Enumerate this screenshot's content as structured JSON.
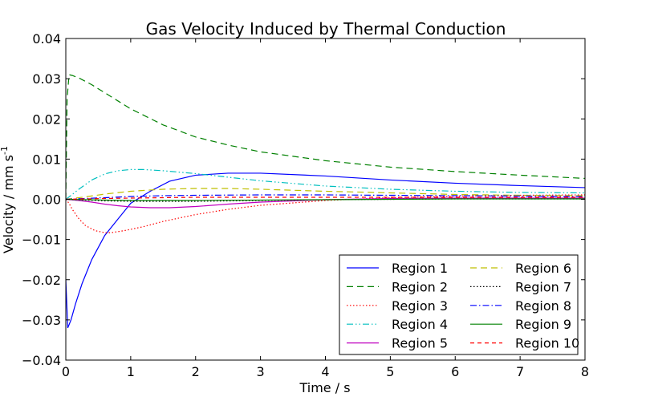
{
  "chart_data": {
    "type": "line",
    "title": "Gas Velocity Induced by Thermal Conduction",
    "xlabel": "Time / s",
    "ylabel_main": "Velocity / mm s",
    "ylabel_sup": "-1",
    "xlim": [
      0,
      8
    ],
    "ylim": [
      -0.04,
      0.04
    ],
    "xticks": [
      0,
      1,
      2,
      3,
      4,
      5,
      6,
      7,
      8
    ],
    "xtick_labels": [
      "0",
      "1",
      "2",
      "3",
      "4",
      "5",
      "6",
      "7",
      "8"
    ],
    "yticks": [
      -0.04,
      -0.03,
      -0.02,
      -0.01,
      0.0,
      0.01,
      0.02,
      0.03,
      0.04
    ],
    "ytick_labels": [
      "−0.04",
      "−0.03",
      "−0.02",
      "−0.01",
      "0.00",
      "0.01",
      "0.02",
      "0.03",
      "0.04"
    ],
    "grid": false,
    "legend_position": "lower-right",
    "legend_columns": 2,
    "series": [
      {
        "name": "Region 1",
        "color": "#0000ff",
        "dash": "solid",
        "x": [
          0,
          0.03,
          0.08,
          0.15,
          0.25,
          0.4,
          0.6,
          0.8,
          1.0,
          1.3,
          1.6,
          2.0,
          2.5,
          3.0,
          4.0,
          5.0,
          6.0,
          7.0,
          8.0
        ],
        "y": [
          -0.02,
          -0.032,
          -0.03,
          -0.026,
          -0.021,
          -0.015,
          -0.009,
          -0.005,
          -0.001,
          0.002,
          0.0045,
          0.006,
          0.0065,
          0.0065,
          0.0058,
          0.0048,
          0.004,
          0.0034,
          0.0029
        ]
      },
      {
        "name": "Region 2",
        "color": "#008000",
        "dash": "8,5",
        "x": [
          0,
          0.02,
          0.05,
          0.1,
          0.2,
          0.4,
          0.6,
          0.8,
          1.0,
          1.5,
          2.0,
          2.5,
          3.0,
          4.0,
          5.0,
          6.0,
          7.0,
          8.0
        ],
        "y": [
          0.0,
          0.025,
          0.031,
          0.0308,
          0.0302,
          0.0285,
          0.0265,
          0.0245,
          0.0225,
          0.0185,
          0.0155,
          0.0135,
          0.0118,
          0.0096,
          0.008,
          0.0069,
          0.006,
          0.0052
        ]
      },
      {
        "name": "Region 3",
        "color": "#ff0000",
        "dash": "1.5,2.5",
        "x": [
          0,
          0.05,
          0.1,
          0.2,
          0.3,
          0.45,
          0.6,
          0.7,
          0.9,
          1.2,
          1.5,
          2.0,
          2.5,
          3.0,
          4.0,
          5.0,
          6.0,
          7.0,
          8.0
        ],
        "y": [
          0.0,
          -0.001,
          -0.0025,
          -0.0048,
          -0.0065,
          -0.0078,
          -0.0083,
          -0.0083,
          -0.0078,
          -0.0068,
          -0.0055,
          -0.0038,
          -0.0025,
          -0.0015,
          -0.0003,
          0.0004,
          0.0008,
          0.001,
          0.0011
        ]
      },
      {
        "name": "Region 4",
        "color": "#00bfbf",
        "dash": "8,3,1.5,3,1.5,3",
        "x": [
          0,
          0.1,
          0.2,
          0.4,
          0.6,
          0.8,
          1.0,
          1.2,
          1.5,
          2.0,
          2.5,
          3.0,
          4.0,
          5.0,
          6.0,
          7.0,
          8.0
        ],
        "y": [
          0.0,
          0.0012,
          0.0025,
          0.0048,
          0.0063,
          0.0071,
          0.0074,
          0.0074,
          0.0071,
          0.0064,
          0.0055,
          0.0046,
          0.0033,
          0.0025,
          0.002,
          0.0017,
          0.0016
        ]
      },
      {
        "name": "Region 5",
        "color": "#bf00bf",
        "dash": "solid",
        "x": [
          0,
          0.2,
          0.4,
          0.6,
          0.8,
          1.0,
          1.3,
          1.6,
          2.0,
          2.5,
          3.0,
          4.0,
          5.0,
          6.0,
          7.0,
          8.0
        ],
        "y": [
          0.0,
          -0.0003,
          -0.0007,
          -0.0012,
          -0.0016,
          -0.0019,
          -0.0021,
          -0.0021,
          -0.0018,
          -0.0012,
          -0.0007,
          -0.0001,
          0.0002,
          0.0003,
          0.0003,
          0.0003
        ]
      },
      {
        "name": "Region 6",
        "color": "#bfbf00",
        "dash": "8,5",
        "x": [
          0,
          0.3,
          0.6,
          1.0,
          1.5,
          2.0,
          2.5,
          3.0,
          4.0,
          5.0,
          6.0,
          7.0,
          8.0
        ],
        "y": [
          0.0,
          0.0006,
          0.0013,
          0.002,
          0.0025,
          0.0027,
          0.0027,
          0.0025,
          0.002,
          0.0016,
          0.0012,
          0.001,
          0.0009
        ]
      },
      {
        "name": "Region 7",
        "color": "#000000",
        "dash": "1.5,2.5",
        "x": [
          0,
          0.3,
          0.6,
          1.0,
          1.5,
          2.0,
          3.0,
          4.0,
          5.0,
          6.0,
          7.0,
          8.0
        ],
        "y": [
          0.0,
          -0.0002,
          -0.0004,
          -0.0005,
          -0.0005,
          -0.0005,
          -0.0003,
          -0.0001,
          0.0,
          0.0001,
          0.0001,
          0.0001
        ]
      },
      {
        "name": "Region 8",
        "color": "#0000ff",
        "dash": "8,3,1.5,3",
        "x": [
          0,
          0.3,
          0.6,
          1.0,
          1.5,
          2.0,
          3.0,
          4.0,
          5.0,
          6.0,
          7.0,
          8.0
        ],
        "y": [
          0.0,
          0.0002,
          0.0004,
          0.0007,
          0.0009,
          0.001,
          0.0011,
          0.0011,
          0.001,
          0.0009,
          0.0008,
          0.0007
        ]
      },
      {
        "name": "Region 9",
        "color": "#008000",
        "dash": "solid",
        "x": [
          0,
          0.3,
          0.6,
          1.0,
          1.5,
          2.0,
          3.0,
          4.0,
          5.0,
          6.0,
          7.0,
          8.0
        ],
        "y": [
          0.0,
          -0.0001,
          -0.0002,
          -0.0003,
          -0.0003,
          -0.0003,
          -0.0002,
          -0.0001,
          0.0,
          0.0001,
          0.0001,
          0.0001
        ]
      },
      {
        "name": "Region 10",
        "color": "#ff0000",
        "dash": "5,4",
        "x": [
          0,
          0.3,
          0.6,
          1.0,
          1.5,
          2.0,
          3.0,
          4.0,
          5.0,
          6.0,
          7.0,
          8.0
        ],
        "y": [
          0.0,
          0.0001,
          0.0002,
          0.0003,
          0.0004,
          0.0005,
          0.0005,
          0.0005,
          0.0005,
          0.0005,
          0.0005,
          0.0005
        ]
      }
    ]
  }
}
